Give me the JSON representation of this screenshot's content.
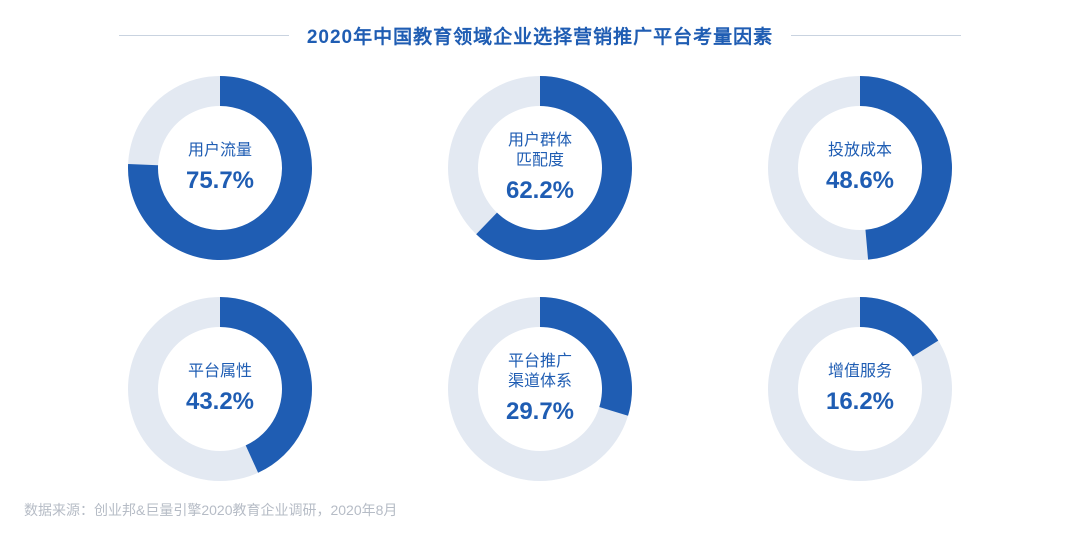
{
  "title": "2020年中国教育领域企业选择营销推广平台考量因素",
  "title_color": "#1f5db3",
  "title_fontsize": 19,
  "title_line_color": "#c9d3e0",
  "background_color": "#ffffff",
  "donut": {
    "outer_radius": 92,
    "inner_radius": 62,
    "track_color": "#e3e9f2",
    "fill_color": "#1f5db3",
    "label_color": "#1f5db3",
    "label_fontsize": 16,
    "value_color": "#1f5db3",
    "value_fontsize": 24
  },
  "items": [
    {
      "label": "用户流量",
      "value_text": "75.7%",
      "value": 75.7
    },
    {
      "label": "用户群体\n匹配度",
      "value_text": "62.2%",
      "value": 62.2
    },
    {
      "label": "投放成本",
      "value_text": "48.6%",
      "value": 48.6
    },
    {
      "label": "平台属性",
      "value_text": "43.2%",
      "value": 43.2
    },
    {
      "label": "平台推广\n渠道体系",
      "value_text": "29.7%",
      "value": 29.7
    },
    {
      "label": "增值服务",
      "value_text": "16.2%",
      "value": 16.2
    }
  ],
  "source_text": "数据来源：创业邦&巨量引擎2020教育企业调研，2020年8月",
  "source_color": "#b6bcc6",
  "source_fontsize": 14
}
